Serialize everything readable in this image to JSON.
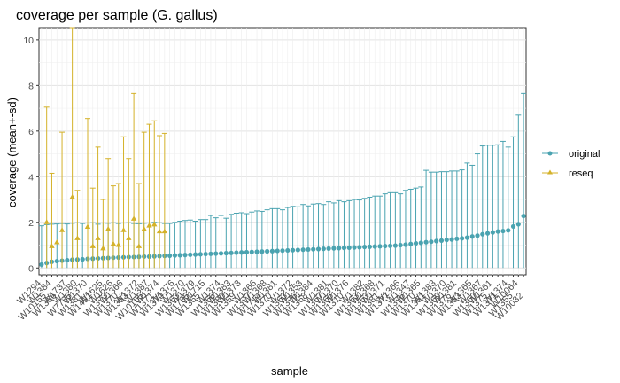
{
  "chart_data": {
    "type": "scatter",
    "title": "coverage per sample (G. gallus)",
    "xlabel": "sample",
    "ylabel": "coverage (mean+-sd)",
    "ylim": [
      -0.3,
      10.5
    ],
    "yticks": [
      0,
      2,
      4,
      6,
      8,
      10
    ],
    "grid": true,
    "legend_position": "right",
    "x_tick_labels_visible": [
      "W1294",
      "W10155",
      "W1384",
      "W1366",
      "W1737",
      "W7735",
      "W1380",
      "W1381",
      "W1370",
      "W1491",
      "W1625",
      "W1373",
      "W1626",
      "W1370",
      "W1366",
      "W1363",
      "W1372",
      "W10155",
      "W1387",
      "W1371",
      "W1374",
      "W1370",
      "W1376",
      "W1363",
      "W1370",
      "W1735",
      "W1379",
      "W1365",
      "W1715",
      "W1366",
      "W1374",
      "W1380",
      "W1383",
      "W1359",
      "W1373",
      "W1377",
      "W1366",
      "W1714",
      "W1368",
      "W1370",
      "W1381",
      "W1363",
      "W1372",
      "W1376",
      "W1353",
      "W1368",
      "W1384",
      "W1367",
      "W1381",
      "W1366",
      "W1370",
      "W1310",
      "W1376",
      "W1363",
      "W1382",
      "W1353",
      "W1368",
      "W1381",
      "W1371",
      "W1377",
      "W1366",
      "W1376",
      "W1347",
      "W1370",
      "W1365",
      "W1361",
      "W1383",
      "W1369",
      "W1370",
      "W1376",
      "W1381",
      "W1363",
      "W1365",
      "W1360",
      "W1367",
      "W1375",
      "W1361",
      "W1371",
      "W1374",
      "W1355",
      "W10064",
      "W10032"
    ],
    "series": [
      {
        "name": "original",
        "color": "#4aa3b0",
        "marker": "circle",
        "values": [
          0.15,
          0.22,
          0.27,
          0.3,
          0.32,
          0.34,
          0.36,
          0.37,
          0.38,
          0.4,
          0.41,
          0.42,
          0.43,
          0.44,
          0.45,
          0.46,
          0.47,
          0.48,
          0.48,
          0.49,
          0.5,
          0.5,
          0.51,
          0.52,
          0.53,
          0.54,
          0.55,
          0.56,
          0.57,
          0.58,
          0.59,
          0.6,
          0.61,
          0.62,
          0.63,
          0.64,
          0.65,
          0.66,
          0.67,
          0.68,
          0.69,
          0.7,
          0.71,
          0.72,
          0.73,
          0.74,
          0.75,
          0.76,
          0.77,
          0.78,
          0.79,
          0.8,
          0.81,
          0.82,
          0.83,
          0.84,
          0.85,
          0.86,
          0.87,
          0.88,
          0.89,
          0.9,
          0.91,
          0.92,
          0.93,
          0.94,
          0.95,
          0.96,
          0.97,
          0.98,
          1.0,
          1.02,
          1.05,
          1.08,
          1.1,
          1.13,
          1.15,
          1.18,
          1.2,
          1.23,
          1.25,
          1.28,
          1.3,
          1.33,
          1.38,
          1.42,
          1.48,
          1.52,
          1.56,
          1.6,
          1.62,
          1.65,
          1.82,
          1.92,
          2.28
        ],
        "sd_upper": [
          1.85,
          1.9,
          1.92,
          1.93,
          1.95,
          1.93,
          1.96,
          1.98,
          1.95,
          1.97,
          1.98,
          1.92,
          1.97,
          1.96,
          1.98,
          1.95,
          1.97,
          1.98,
          1.95,
          1.94,
          1.96,
          1.97,
          2.0,
          1.98,
          1.95,
          1.95,
          2.0,
          2.05,
          2.08,
          2.1,
          2.05,
          2.12,
          2.12,
          2.3,
          2.2,
          2.3,
          2.18,
          2.35,
          2.4,
          2.42,
          2.38,
          2.45,
          2.5,
          2.48,
          2.55,
          2.6,
          2.6,
          2.55,
          2.65,
          2.7,
          2.68,
          2.78,
          2.72,
          2.8,
          2.82,
          2.78,
          2.9,
          2.85,
          2.95,
          2.9,
          2.95,
          3.0,
          2.98,
          3.05,
          3.1,
          3.15,
          3.15,
          3.25,
          3.3,
          3.3,
          3.25,
          3.4,
          3.45,
          3.5,
          3.55,
          4.28,
          4.2,
          4.2,
          4.22,
          4.22,
          4.25,
          4.25,
          4.3,
          4.6,
          4.5,
          5.0,
          5.35,
          5.38,
          5.38,
          5.4,
          5.55,
          5.3,
          5.75,
          6.7,
          7.65
        ]
      },
      {
        "name": "reseq",
        "color": "#d4b22a",
        "marker": "triangle",
        "points": [
          {
            "index": 1,
            "value": 2.0,
            "upper": 7.05,
            "lower": 0.0
          },
          {
            "index": 2,
            "value": 0.95,
            "upper": 4.15,
            "lower": 0.0
          },
          {
            "index": 3,
            "value": 1.12,
            "upper": 0.0,
            "lower": 0.0
          },
          {
            "index": 4,
            "value": 1.65,
            "upper": 5.95,
            "lower": 0.0
          },
          {
            "index": 6,
            "value": 3.1,
            "upper": 10.5,
            "lower": 0.0
          },
          {
            "index": 7,
            "value": 1.3,
            "upper": 3.4,
            "lower": 0.0
          },
          {
            "index": 9,
            "value": 1.8,
            "upper": 6.55,
            "lower": 0.0
          },
          {
            "index": 10,
            "value": 0.95,
            "upper": 3.5,
            "lower": 0.0
          },
          {
            "index": 11,
            "value": 1.3,
            "upper": 5.3,
            "lower": 0.0
          },
          {
            "index": 12,
            "value": 0.85,
            "upper": 3.0,
            "lower": 0.0
          },
          {
            "index": 13,
            "value": 1.7,
            "upper": 4.8,
            "lower": 0.0
          },
          {
            "index": 14,
            "value": 1.05,
            "upper": 3.6,
            "lower": 0.0
          },
          {
            "index": 15,
            "value": 1.0,
            "upper": 3.7,
            "lower": 0.0
          },
          {
            "index": 16,
            "value": 1.65,
            "upper": 5.75,
            "lower": 0.0
          },
          {
            "index": 17,
            "value": 1.3,
            "upper": 4.8,
            "lower": 0.0
          },
          {
            "index": 18,
            "value": 2.15,
            "upper": 7.65,
            "lower": 0.0
          },
          {
            "index": 19,
            "value": 0.95,
            "upper": 3.7,
            "lower": 0.0
          },
          {
            "index": 20,
            "value": 1.7,
            "upper": 5.95,
            "lower": 0.0
          },
          {
            "index": 21,
            "value": 1.85,
            "upper": 6.3,
            "lower": 0.0
          },
          {
            "index": 22,
            "value": 1.9,
            "upper": 6.45,
            "lower": 0.0
          },
          {
            "index": 23,
            "value": 1.6,
            "upper": 5.8,
            "lower": 0.0
          },
          {
            "index": 24,
            "value": 1.6,
            "upper": 5.9,
            "lower": 0.0
          }
        ]
      }
    ]
  }
}
